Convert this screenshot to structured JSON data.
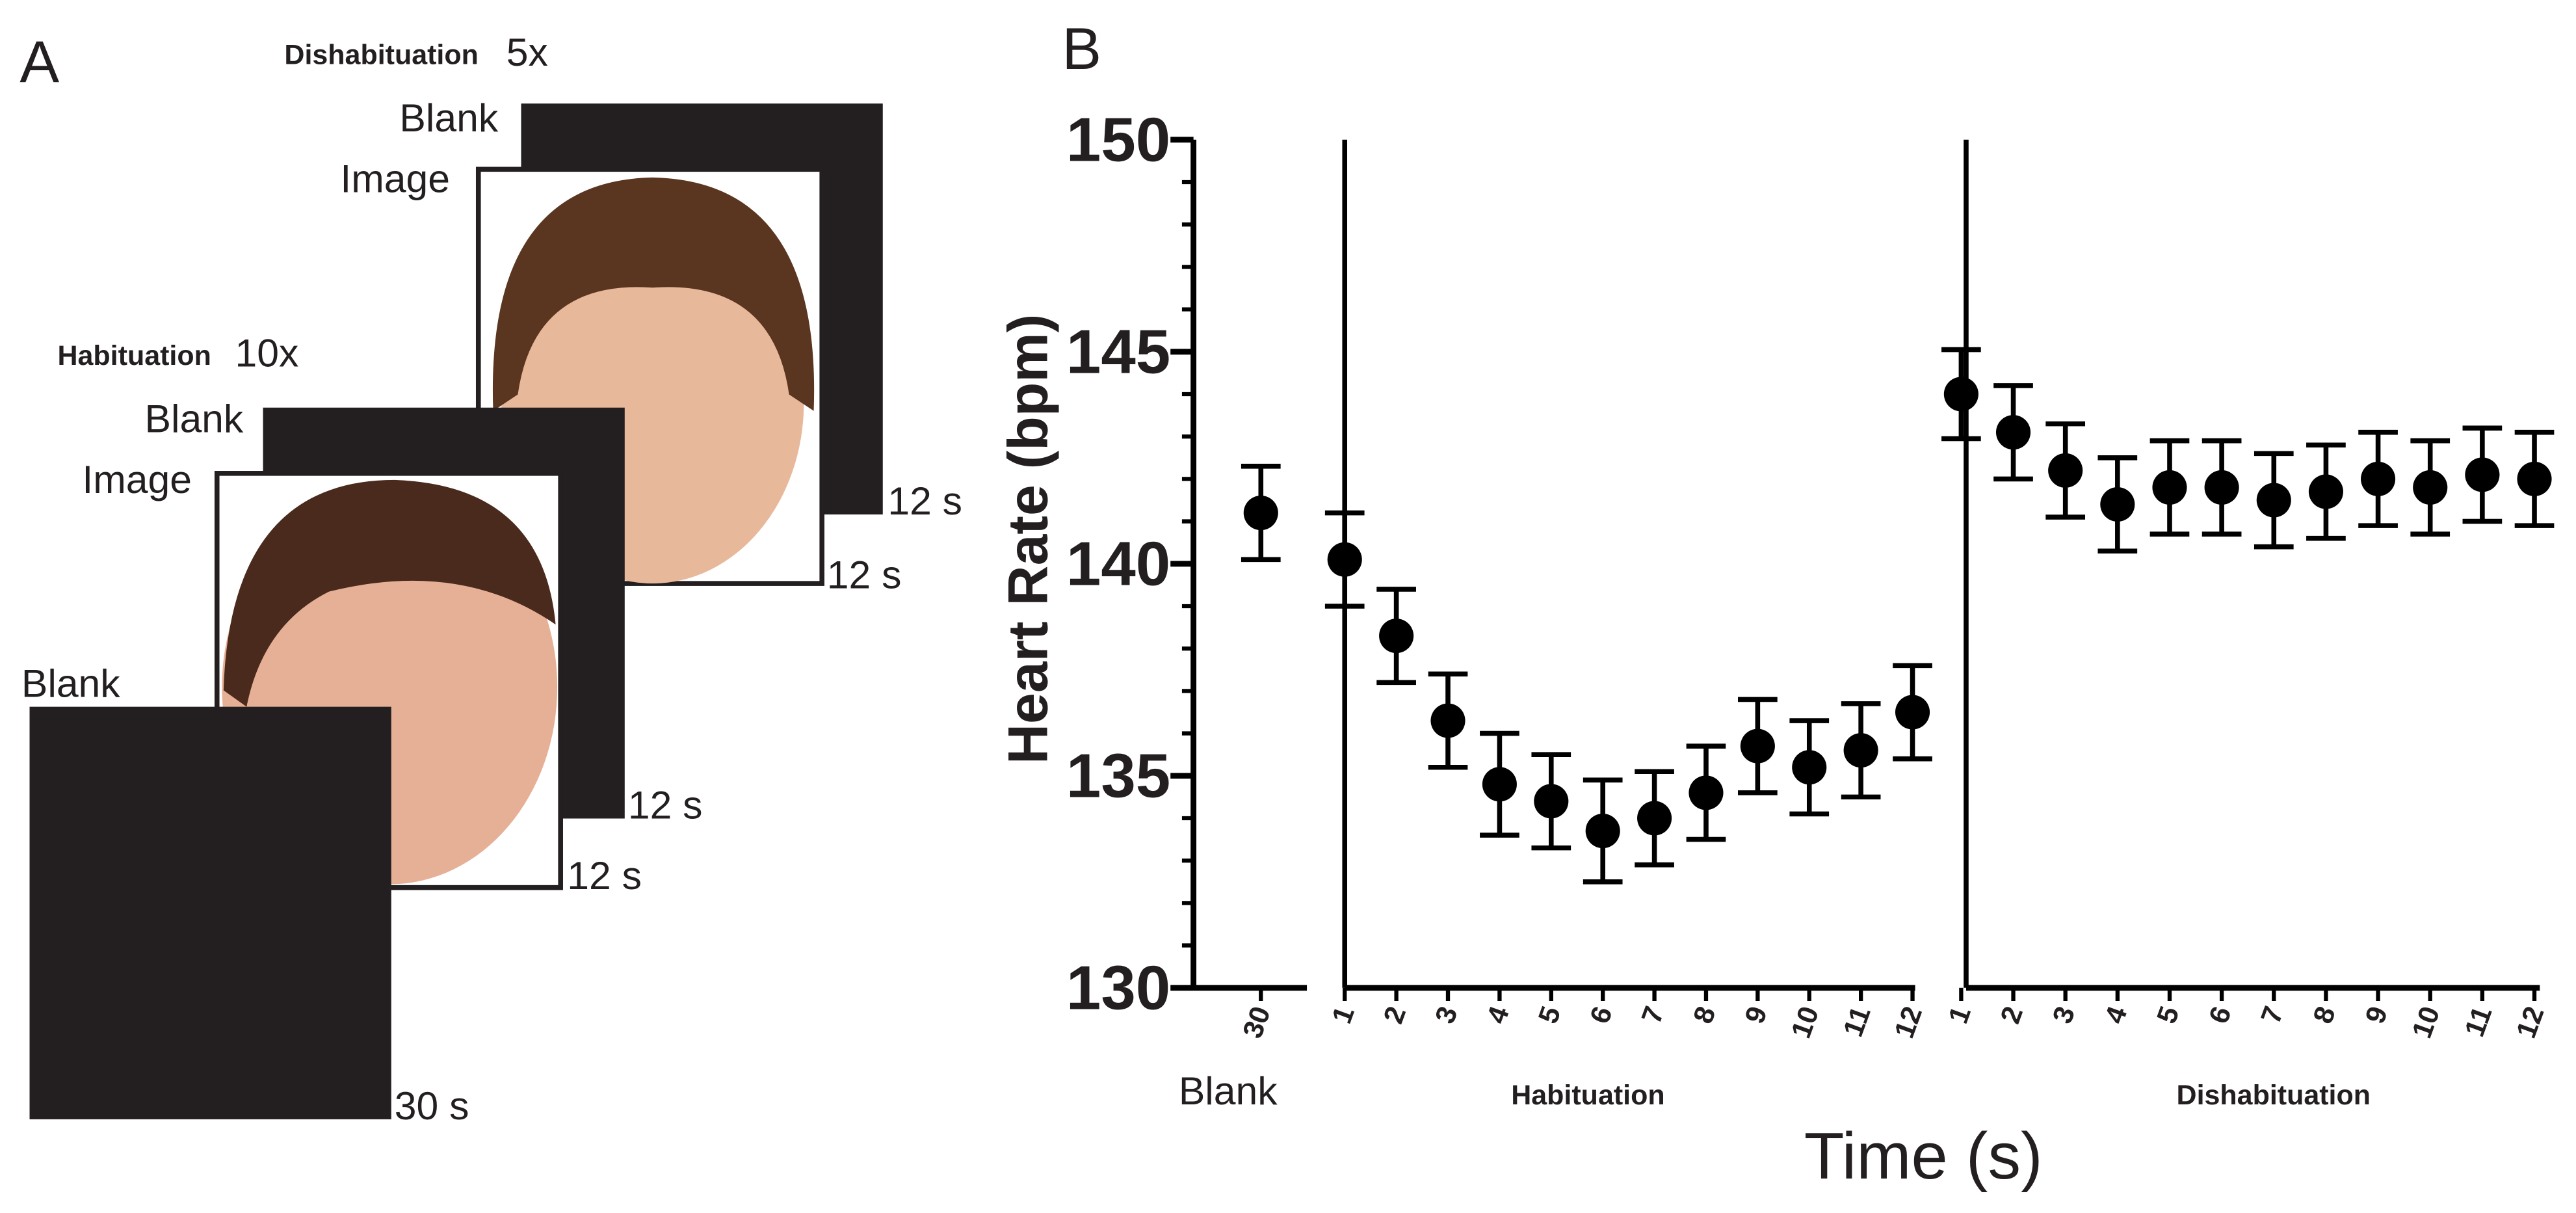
{
  "panel_a": {
    "label": "A",
    "dishabituation": {
      "title": "Dishabituation",
      "repeat": "5x",
      "blank": "Blank",
      "image": "Image",
      "blank_duration": "12 s",
      "image_duration": "12 s"
    },
    "habituation": {
      "title": "Habituation",
      "repeat": "10x",
      "blank": "Blank",
      "image": "Image",
      "blank_duration": "12 s",
      "image_duration": "12 s"
    },
    "baseline": {
      "blank": "Blank",
      "duration": "30 s"
    }
  },
  "chart_data": {
    "type": "scatter",
    "panel_label": "B",
    "x_label": "Time (s)",
    "y_label": "Heart Rate (bpm)",
    "ylim": [
      130,
      150
    ],
    "yticks": [
      130,
      135,
      140,
      145,
      150
    ],
    "color": "#000000",
    "series": [
      {
        "name": "Blank",
        "x": [
          30
        ],
        "values": [
          141.2
        ],
        "errors": [
          1.1
        ]
      },
      {
        "name": "Habituation",
        "x": [
          1,
          2,
          3,
          4,
          5,
          6,
          7,
          8,
          9,
          10,
          11,
          12
        ],
        "values": [
          140.1,
          138.3,
          136.3,
          134.8,
          134.4,
          133.7,
          134.0,
          134.6,
          135.7,
          135.2,
          135.6,
          136.5
        ],
        "errors": [
          1.1,
          1.1,
          1.1,
          1.2,
          1.1,
          1.2,
          1.1,
          1.1,
          1.1,
          1.1,
          1.1,
          1.1
        ]
      },
      {
        "name": "Dishabituation",
        "x": [
          1,
          2,
          3,
          4,
          5,
          6,
          7,
          8,
          9,
          10,
          11,
          12
        ],
        "values": [
          144.0,
          143.1,
          142.2,
          141.4,
          141.8,
          141.8,
          141.5,
          141.7,
          142.0,
          141.8,
          142.1,
          142.0
        ],
        "errors": [
          1.05,
          1.1,
          1.1,
          1.1,
          1.1,
          1.1,
          1.1,
          1.1,
          1.1,
          1.1,
          1.1,
          1.1
        ]
      }
    ]
  }
}
